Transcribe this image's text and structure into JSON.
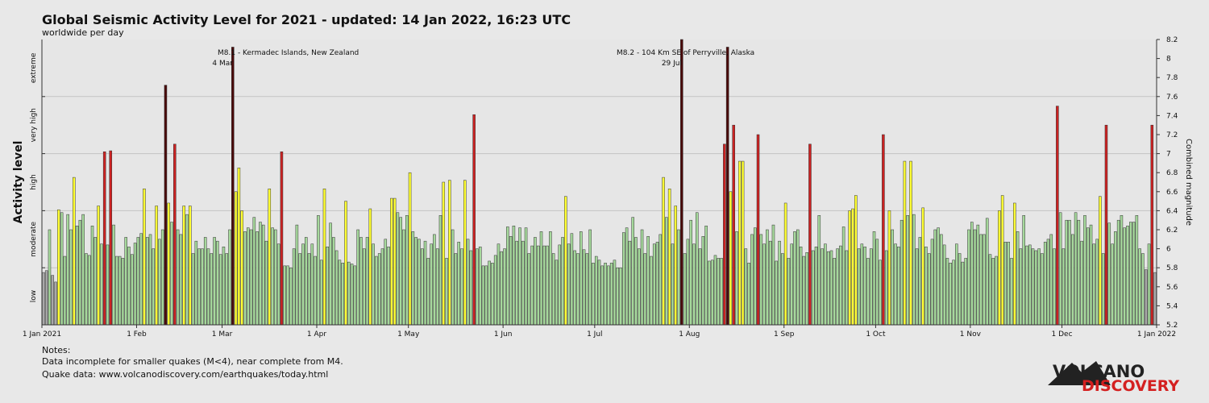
{
  "chart_data": {
    "type": "bar",
    "title": "Global Seismic Activity Level for 2021 - updated: 14 Jan 2022, 16:23 UTC",
    "subtitle": "worldwide per day",
    "y_label": "Activity level",
    "y2_label": "Combined magnitude",
    "levels": [
      {
        "label": "low",
        "from": 5.2,
        "to": 5.8,
        "color": "#a9a9a9"
      },
      {
        "label": "moderate",
        "from": 5.8,
        "to": 6.4,
        "color": "#a6d99c"
      },
      {
        "label": "high",
        "from": 6.4,
        "to": 7.0,
        "color": "#ffff33"
      },
      {
        "label": "very high",
        "from": 7.0,
        "to": 7.6,
        "color": "#cc2222"
      },
      {
        "label": "extreme",
        "from": 7.6,
        "to": 8.2,
        "color": "#4a0a0a"
      }
    ],
    "xlim": [
      0,
      365
    ],
    "xticks": [
      {
        "value": 0,
        "label": "1 Jan 2021"
      },
      {
        "value": 31,
        "label": "1 Feb"
      },
      {
        "value": 59,
        "label": "1 Mar"
      },
      {
        "value": 90,
        "label": "1 Apr"
      },
      {
        "value": 120,
        "label": "1 May"
      },
      {
        "value": 151,
        "label": "1 Jun"
      },
      {
        "value": 181,
        "label": "1 Jul"
      },
      {
        "value": 212,
        "label": "1 Aug"
      },
      {
        "value": 243,
        "label": "1 Sep"
      },
      {
        "value": 273,
        "label": "1 Oct"
      },
      {
        "value": 304,
        "label": "1 Nov"
      },
      {
        "value": 334,
        "label": "1 Dec"
      },
      {
        "value": 365,
        "label": "1 Jan 2022"
      }
    ],
    "y2lim": [
      5.2,
      8.2
    ],
    "y2ticks": [
      5.2,
      5.4,
      5.6,
      5.8,
      6,
      6.2,
      6.4,
      6.6,
      6.8,
      7,
      7.2,
      7.4,
      7.6,
      7.8,
      8,
      8.2
    ],
    "annotations": [
      {
        "text": "M8.1 - Kermadec Islands, New Zealand",
        "date": "4 Mar"
      },
      {
        "text": "M8.2 - 104 Km SE of Perryville, Alaska",
        "date": "29 Jul"
      }
    ],
    "values": [
      5.75,
      5.77,
      6.2,
      5.72,
      5.65,
      6.41,
      6.38,
      5.92,
      6.36,
      6.2,
      6.75,
      6.24,
      6.3,
      6.36,
      5.95,
      5.93,
      6.24,
      6.12,
      6.45,
      6.05,
      7.02,
      6.04,
      7.03,
      6.25,
      5.92,
      5.92,
      5.9,
      6.12,
      6.02,
      5.94,
      6.06,
      6.12,
      6.16,
      6.63,
      6.12,
      6.15,
      6.0,
      6.45,
      6.1,
      6.2,
      7.72,
      6.48,
      6.28,
      7.1,
      6.2,
      6.15,
      6.45,
      6.36,
      6.45,
      5.95,
      6.08,
      6.0,
      6.0,
      6.12,
      6.0,
      5.95,
      6.12,
      6.08,
      5.94,
      6.02,
      5.95,
      6.2,
      8.12,
      6.6,
      6.85,
      6.4,
      6.18,
      6.22,
      6.2,
      6.33,
      6.18,
      6.28,
      6.25,
      6.08,
      6.63,
      6.22,
      6.2,
      6.05,
      7.02,
      5.82,
      5.82,
      5.8,
      6.0,
      6.25,
      5.95,
      6.05,
      6.12,
      5.95,
      6.05,
      5.92,
      6.35,
      5.88,
      6.63,
      6.02,
      6.27,
      6.12,
      5.98,
      5.88,
      5.85,
      6.5,
      5.86,
      5.84,
      5.82,
      6.2,
      6.12,
      6.0,
      6.12,
      6.42,
      6.05,
      5.92,
      5.95,
      6.0,
      6.1,
      6.02,
      6.53,
      6.53,
      6.38,
      6.33,
      6.2,
      6.35,
      6.8,
      6.18,
      6.12,
      6.1,
      6.0,
      6.08,
      5.9,
      6.05,
      6.15,
      6.0,
      6.35,
      6.7,
      5.9,
      6.72,
      6.2,
      5.95,
      6.07,
      6.0,
      6.72,
      6.1,
      5.98,
      7.41,
      6.0,
      6.02,
      5.82,
      5.82,
      5.87,
      5.85,
      5.93,
      6.05,
      5.97,
      6.0,
      6.23,
      6.13,
      6.24,
      6.08,
      6.22,
      6.08,
      6.22,
      5.95,
      6.03,
      6.12,
      6.03,
      6.18,
      6.03,
      6.03,
      6.18,
      5.95,
      5.88,
      6.04,
      6.12,
      6.55,
      6.05,
      6.16,
      5.98,
      5.95,
      6.18,
      5.99,
      5.95,
      6.2,
      5.85,
      5.92,
      5.88,
      5.82,
      5.85,
      5.82,
      5.85,
      5.88,
      5.8,
      5.8,
      6.17,
      6.22,
      6.08,
      6.33,
      6.12,
      6.0,
      6.2,
      5.95,
      6.13,
      5.92,
      6.05,
      6.07,
      6.15,
      6.75,
      6.33,
      6.63,
      6.05,
      6.45,
      6.2,
      8.2,
      5.95,
      6.1,
      6.3,
      6.05,
      6.38,
      6.0,
      6.13,
      6.24,
      5.87,
      5.88,
      5.93,
      5.9,
      5.9,
      7.1,
      8.12,
      6.6,
      7.3,
      6.18,
      6.92,
      6.92,
      6.0,
      5.85,
      6.15,
      6.22,
      7.2,
      6.15,
      6.05,
      6.2,
      6.08,
      6.25,
      5.87,
      6.08,
      5.95,
      6.48,
      5.9,
      6.05,
      6.18,
      6.2,
      6.02,
      5.92,
      5.96,
      7.1,
      5.98,
      6.02,
      6.35,
      6.0,
      6.05,
      5.97,
      5.98,
      5.9,
      6.0,
      6.03,
      6.23,
      5.98,
      6.4,
      6.42,
      6.56,
      6.0,
      6.05,
      6.02,
      5.9,
      6.0,
      6.18,
      6.1,
      5.88,
      7.2,
      5.98,
      6.4,
      6.2,
      6.05,
      6.02,
      6.3,
      6.92,
      6.35,
      6.92,
      6.36,
      6.0,
      6.12,
      6.43,
      6.02,
      5.95,
      6.1,
      6.2,
      6.22,
      6.15,
      6.04,
      5.9,
      5.85,
      5.88,
      6.05,
      5.95,
      5.86,
      5.9,
      6.2,
      6.28,
      6.2,
      6.25,
      6.15,
      6.15,
      6.32,
      5.94,
      5.9,
      5.92,
      6.4,
      6.56,
      6.07,
      6.07,
      5.9,
      6.48,
      6.18,
      6.0,
      6.35,
      6.03,
      6.04,
      6.0,
      5.98,
      6.0,
      5.95,
      6.07,
      6.1,
      6.15,
      6.0,
      7.5,
      6.38,
      6.0,
      6.3,
      6.3,
      6.15,
      6.38,
      6.3,
      6.08,
      6.35,
      6.22,
      6.25,
      6.05,
      6.1,
      6.55,
      5.95,
      7.3,
      6.27,
      6.05,
      6.18,
      6.3,
      6.35,
      6.22,
      6.24,
      6.28,
      6.28,
      6.35,
      6.0,
      5.95,
      5.78,
      6.05,
      7.3,
      5.75
    ],
    "grid": true
  },
  "notes": {
    "heading": "Notes:",
    "lines": [
      "Data incomplete for smaller quakes (M<4), near complete from M4.",
      "Quake data: www.volcanodiscovery.com/earthquakes/today.html"
    ]
  },
  "logo": {
    "line1": "VOLCANO",
    "line2": "DISCOVERY"
  }
}
